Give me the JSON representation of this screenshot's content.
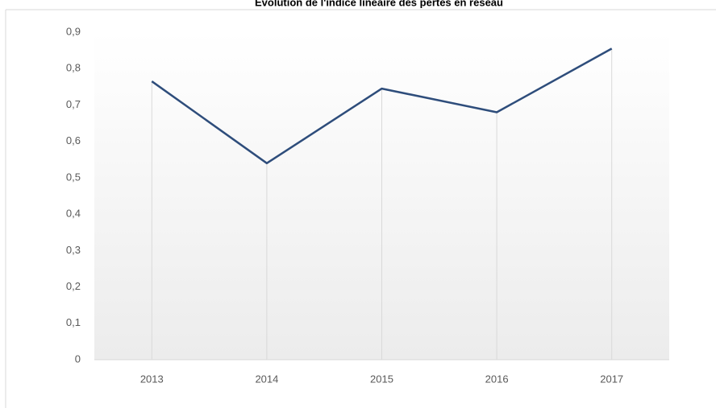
{
  "chart_data": {
    "type": "line",
    "title": "Évolution de l'indice linéaire des pertes en réseau",
    "categories": [
      "2013",
      "2014",
      "2015",
      "2016",
      "2017"
    ],
    "series": [
      {
        "name": "Indice linéaire des pertes",
        "color": "#2e4d7b",
        "values": [
          0.765,
          0.54,
          0.745,
          0.68,
          0.855
        ]
      }
    ],
    "ylim": [
      0,
      0.9
    ],
    "yticks": [
      0,
      {
        "value": 0.1,
        "label": "0,1"
      },
      {
        "value": 0.2,
        "label": "0,2"
      },
      {
        "value": 0.3,
        "label": "0,3"
      },
      {
        "value": 0.4,
        "label": "0,4"
      },
      {
        "value": 0.5,
        "label": "0,5"
      },
      {
        "value": 0.6,
        "label": "0,6"
      },
      {
        "value": 0.7,
        "label": "0,7"
      },
      {
        "value": 0.8,
        "label": "0,8"
      },
      {
        "value": 0.9,
        "label": "0,9"
      }
    ],
    "drop_lines": true
  }
}
